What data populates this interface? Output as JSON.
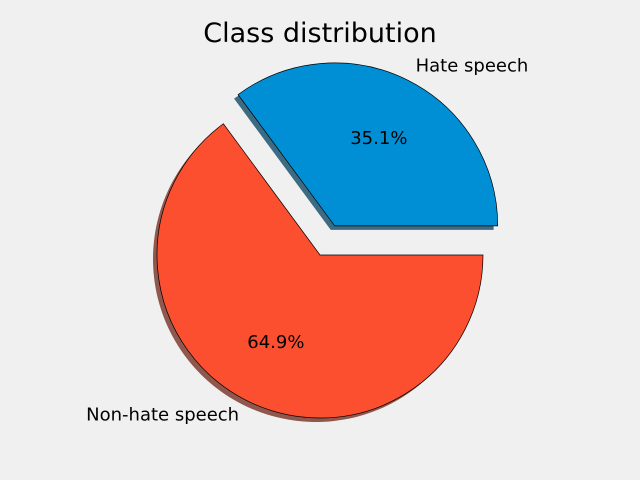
{
  "chart_data": {
    "type": "pie",
    "title": "Class distribution",
    "slices": [
      {
        "label": "Hate speech",
        "value": 35.1,
        "pct_label": "35.1%",
        "color": "#008fd5",
        "explode": 0.2
      },
      {
        "label": "Non-hate speech",
        "value": 64.9,
        "pct_label": "64.9%",
        "color": "#fc4f30",
        "explode": 0
      }
    ],
    "start_angle_deg": 0,
    "direction": "counterclockwise",
    "shadow": true
  }
}
